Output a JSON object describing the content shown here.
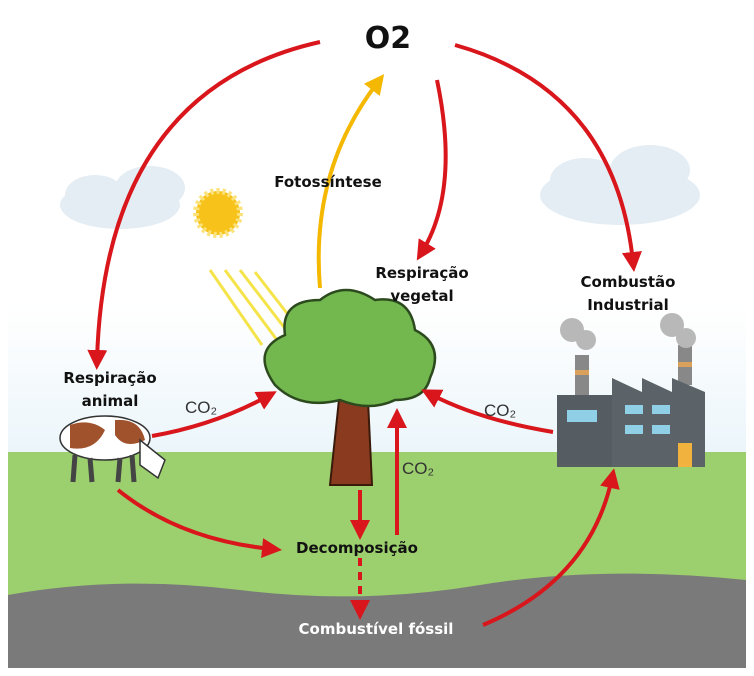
{
  "diagram": {
    "o2": "O2",
    "photosynthesis": "Fotossíntese",
    "plant_respiration": [
      "Respiração",
      "vegetal"
    ],
    "industrial_combustion": [
      "Combustão",
      "Industrial"
    ],
    "animal_respiration": [
      "Respiração",
      "animal"
    ],
    "co2_animal": "CO₂",
    "co2_industry": "CO₂",
    "co2_decomposition": "CO₂",
    "decomposition": "Decomposição",
    "fossil_fuel": "Combustível fóssil"
  }
}
